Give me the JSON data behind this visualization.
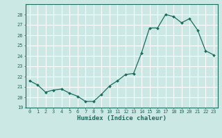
{
  "x": [
    0,
    1,
    2,
    3,
    4,
    5,
    6,
    7,
    8,
    9,
    10,
    11,
    12,
    13,
    14,
    15,
    16,
    17,
    18,
    19,
    20,
    21,
    22,
    23
  ],
  "y": [
    21.6,
    21.2,
    20.5,
    20.7,
    20.8,
    20.4,
    20.1,
    19.6,
    19.6,
    20.3,
    21.1,
    21.6,
    22.2,
    22.3,
    24.3,
    26.7,
    26.7,
    28.0,
    27.8,
    27.2,
    27.6,
    26.5,
    24.5,
    24.1
  ],
  "line_color": "#1a6b5e",
  "marker": "D",
  "marker_size": 2.0,
  "bg_color": "#cce8e4",
  "grid_color": "#ffffff",
  "grid_minor_color": "#e8f5f3",
  "xlabel": "Humidex (Indice chaleur)",
  "ylim": [
    19,
    29
  ],
  "xlim": [
    -0.5,
    23.5
  ],
  "yticks": [
    19,
    20,
    21,
    22,
    23,
    24,
    25,
    26,
    27,
    28
  ],
  "xticks": [
    0,
    1,
    2,
    3,
    4,
    5,
    6,
    7,
    8,
    9,
    10,
    11,
    12,
    13,
    14,
    15,
    16,
    17,
    18,
    19,
    20,
    21,
    22,
    23
  ],
  "font_color": "#1a6b5e",
  "tick_fontsize": 5.0,
  "xlabel_fontsize": 6.5,
  "linewidth": 0.9
}
